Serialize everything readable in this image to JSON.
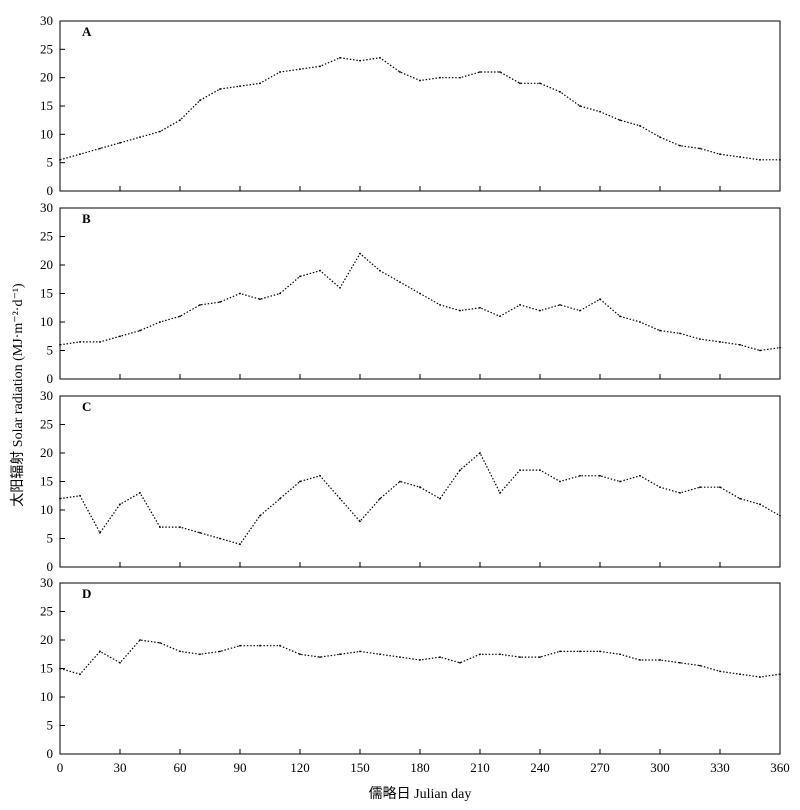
{
  "chart_data": {
    "type": "line",
    "xlabel": "儒略日 Julian day",
    "ylabel": "太阳辐射 Solar radiation (MJ·m⁻²·d⁻¹)",
    "xlim": [
      0,
      360
    ],
    "x_ticks": [
      0,
      30,
      60,
      90,
      120,
      150,
      180,
      210,
      240,
      270,
      300,
      330,
      360
    ],
    "y_ticks": [
      0,
      5,
      10,
      15,
      20,
      25,
      30
    ],
    "grid": false,
    "line_style": "dotted",
    "panels": [
      {
        "label": "A",
        "ylim": [
          0,
          30
        ],
        "x": [
          0,
          10,
          20,
          30,
          40,
          50,
          60,
          70,
          80,
          90,
          100,
          110,
          120,
          130,
          140,
          150,
          160,
          170,
          180,
          190,
          200,
          210,
          220,
          230,
          240,
          250,
          260,
          270,
          280,
          290,
          300,
          310,
          320,
          330,
          340,
          350,
          360
        ],
        "y": [
          5.5,
          6.5,
          7.5,
          8.5,
          9.5,
          10.5,
          12.5,
          16,
          18,
          18.5,
          19,
          21,
          21.5,
          22,
          23.5,
          23,
          23.5,
          21,
          19.5,
          20,
          20,
          21,
          21,
          19,
          19,
          17.5,
          15,
          14,
          12.5,
          11.5,
          9.5,
          8,
          7.5,
          6.5,
          6,
          5.5,
          5.5
        ]
      },
      {
        "label": "B",
        "ylim": [
          0,
          30
        ],
        "x": [
          0,
          10,
          20,
          30,
          40,
          50,
          60,
          70,
          80,
          90,
          100,
          110,
          120,
          130,
          140,
          150,
          160,
          170,
          180,
          190,
          200,
          210,
          220,
          230,
          240,
          250,
          260,
          270,
          280,
          290,
          300,
          310,
          320,
          330,
          340,
          350,
          360
        ],
        "y": [
          6,
          6.5,
          6.5,
          7.5,
          8.5,
          10,
          11,
          13,
          13.5,
          15,
          14,
          15,
          18,
          19,
          16,
          22,
          19,
          17,
          15,
          13,
          12,
          12.5,
          11,
          13,
          12,
          13,
          12,
          14,
          11,
          10,
          8.5,
          8,
          7,
          6.5,
          6,
          5,
          5.5
        ]
      },
      {
        "label": "C",
        "ylim": [
          0,
          30
        ],
        "x": [
          0,
          10,
          20,
          30,
          40,
          50,
          60,
          70,
          80,
          90,
          100,
          110,
          120,
          130,
          140,
          150,
          160,
          170,
          180,
          190,
          200,
          210,
          220,
          230,
          240,
          250,
          260,
          270,
          280,
          290,
          300,
          310,
          320,
          330,
          340,
          350,
          360
        ],
        "y": [
          12,
          12.5,
          6,
          11,
          13,
          7,
          7,
          6,
          5,
          4,
          9,
          12,
          15,
          16,
          12,
          8,
          12,
          15,
          14,
          12,
          17,
          20,
          13,
          17,
          17,
          15,
          16,
          16,
          15,
          16,
          14,
          13,
          14,
          14,
          12,
          11,
          9
        ]
      },
      {
        "label": "D",
        "ylim": [
          0,
          30
        ],
        "x": [
          0,
          10,
          20,
          30,
          40,
          50,
          60,
          70,
          80,
          90,
          100,
          110,
          120,
          130,
          140,
          150,
          160,
          170,
          180,
          190,
          200,
          210,
          220,
          230,
          240,
          250,
          260,
          270,
          280,
          290,
          300,
          310,
          320,
          330,
          340,
          350,
          360
        ],
        "y": [
          15,
          14,
          18,
          16,
          20,
          19.5,
          18,
          17.5,
          18,
          19,
          19,
          19,
          17.5,
          17,
          17.5,
          18,
          17.5,
          17,
          16.5,
          17,
          16,
          17.5,
          17.5,
          17,
          17,
          18,
          18,
          18,
          17.5,
          16.5,
          16.5,
          16,
          15.5,
          14.5,
          14,
          13.5,
          14
        ]
      }
    ]
  }
}
